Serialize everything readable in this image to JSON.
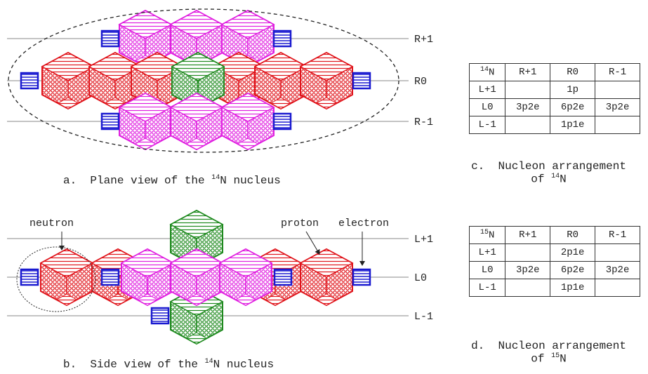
{
  "plane_view": {
    "levels": [
      "R+1",
      "R0",
      "R-1"
    ],
    "caption": {
      "label": "a.",
      "prefix": "Plane view of the",
      "mass": "14",
      "suffix": "N nucleus"
    }
  },
  "side_view": {
    "levels": [
      "L+1",
      "L0",
      "L-1"
    ],
    "annotations": [
      "neutron",
      "proton",
      "electron"
    ],
    "caption": {
      "label": "b.",
      "prefix": "Side view of the",
      "mass": "14",
      "suffix": "N nucleus"
    }
  },
  "table_c": {
    "header": {
      "mass": "14",
      "symbol": "N",
      "columns": [
        "R+1",
        "R0",
        "R-1"
      ]
    },
    "rows": [
      [
        "L+1",
        null,
        "1p",
        null
      ],
      [
        "L0",
        "3p2e",
        "6p2e",
        "3p2e"
      ],
      [
        "L-1",
        null,
        "1p1e",
        null
      ]
    ],
    "caption": {
      "label": "c.",
      "line1": "Nucleon arrangement",
      "prefix": "of",
      "mass": "14",
      "symbol": "N"
    }
  },
  "table_d": {
    "header": {
      "mass": "15",
      "symbol": "N",
      "columns": [
        "R+1",
        "R0",
        "R-1"
      ]
    },
    "rows": [
      [
        "L+1",
        null,
        "2p1e",
        null
      ],
      [
        "L0",
        "3p2e",
        "6p2e",
        "3p2e"
      ],
      [
        "L-1",
        null,
        "1p1e",
        null
      ]
    ],
    "caption": {
      "label": "d.",
      "line1": "Nucleon arrangement",
      "prefix": "of",
      "mass": "15",
      "symbol": "N"
    }
  }
}
